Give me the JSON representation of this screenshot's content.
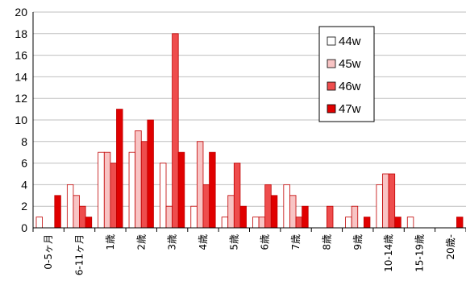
{
  "chart_data": {
    "type": "bar",
    "categories": [
      "0-5ヶ月",
      "6-11ヶ月",
      "1歳",
      "2歳",
      "3歳",
      "4歳",
      "5歳",
      "6歳",
      "7歳",
      "8歳",
      "9歳",
      "10-14歳",
      "15-19歳",
      "20歳-"
    ],
    "series": [
      {
        "name": "44w",
        "color": "#ffffff",
        "values": [
          1,
          4,
          7,
          7,
          6,
          2,
          1,
          1,
          4,
          0,
          1,
          4,
          1,
          0
        ]
      },
      {
        "name": "45w",
        "color": "#f8c4c4",
        "values": [
          0,
          3,
          7,
          9,
          2,
          8,
          3,
          1,
          3,
          0,
          2,
          5,
          0,
          0
        ]
      },
      {
        "name": "46w",
        "color": "#ee4d4d",
        "values": [
          0,
          2,
          6,
          8,
          18,
          4,
          6,
          4,
          1,
          2,
          0,
          5,
          0,
          0
        ]
      },
      {
        "name": "47w",
        "color": "#e00000",
        "values": [
          3,
          1,
          11,
          10,
          7,
          7,
          2,
          3,
          2,
          0,
          1,
          1,
          0,
          1
        ]
      }
    ],
    "ylim": [
      0,
      20
    ],
    "yticks": [
      0,
      2,
      4,
      6,
      8,
      10,
      12,
      14,
      16,
      18,
      20
    ],
    "grid": true,
    "legend_position": "top-right"
  }
}
